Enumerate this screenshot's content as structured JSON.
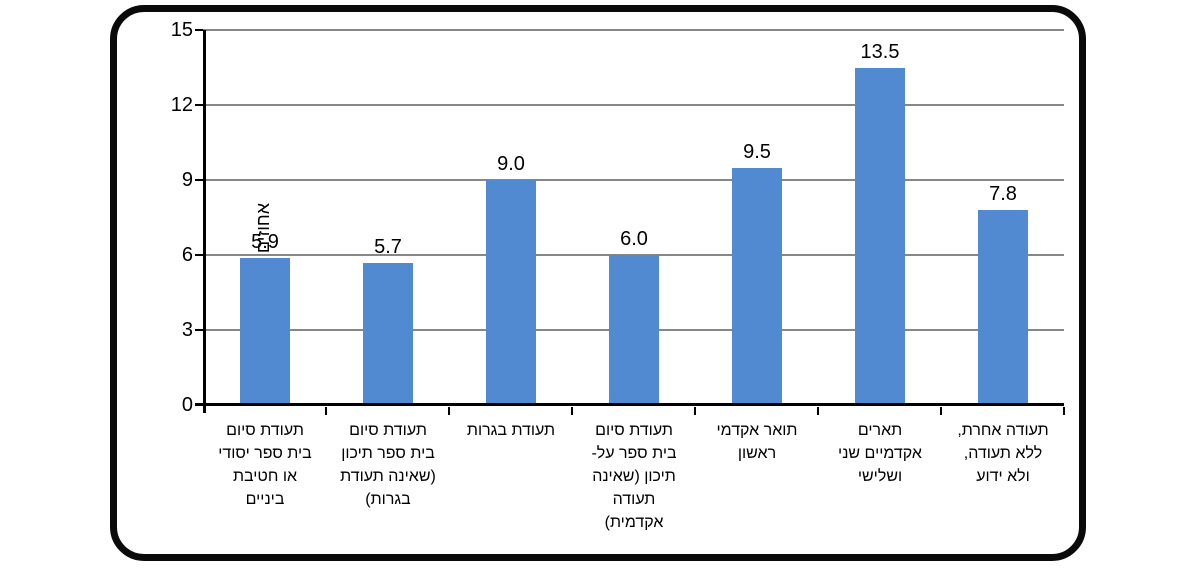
{
  "chart_data": {
    "type": "bar",
    "title": "",
    "xlabel": "",
    "ylabel": "אחוזים",
    "categories": [
      "תעודת סיום בית ספר יסודי או חטיבת ביניים",
      "תעודת סיום בית ספר תיכון (שאינה תעודת בגרות)",
      "תעודת בגרות",
      "תעודת סיום בית ספר על-תיכון (שאינה תעודה אקדמית)",
      "תואר אקדמי ראשון",
      "תארים אקדמיים שני ושלישי",
      "תעודה אחרת, ללא תעודה, ולא ידוע"
    ],
    "category_display": [
      "תעודת סיום\nבית ספר יסודי\nאו חטיבת\nביניים",
      "תעודת סיום\nבית ספר תיכון\n(שאינה תעודת\nבגרות)",
      "תעודת בגרות",
      "תעודת סיום\nבית ספר על-\nתיכון (שאינה\nתעודה\nאקדמית)",
      "תואר אקדמי\nראשון",
      "תארים\nאקדמיים שני\nושלישי",
      "תעודה אחרת,\nללא תעודה,\nולא ידוע"
    ],
    "values": [
      5.9,
      5.7,
      9.0,
      6.0,
      9.5,
      13.5,
      7.8
    ],
    "value_labels": [
      "5.9",
      "5.7",
      "9.0",
      "6.0",
      "9.5",
      "13.5",
      "7.8"
    ],
    "ylim": [
      0,
      15
    ],
    "yticks": [
      0,
      3,
      6,
      9,
      12,
      15
    ],
    "ytick_labels": [
      "0",
      "3",
      "6",
      "9",
      "12",
      "15"
    ],
    "grid": true,
    "legend": "none",
    "text_direction": "rtl",
    "colors": {
      "bar": "#528AD2",
      "gridline": "#878787",
      "axis": "#000000",
      "text": "#000000",
      "frame_border": "#0A0A0A",
      "background": "#FFFFFF"
    }
  }
}
